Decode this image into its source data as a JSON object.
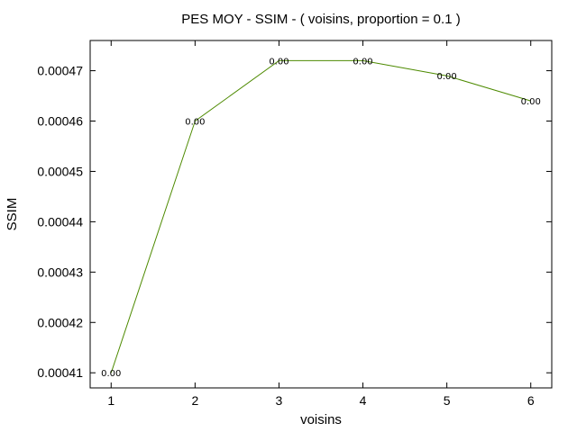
{
  "chart_data": {
    "type": "line",
    "title": "PES MOY - SSIM - ( voisins, proportion = 0.1 )",
    "xlabel": "voisins",
    "ylabel": "SSIM",
    "x": [
      1,
      2,
      3,
      4,
      5,
      6
    ],
    "series": [
      {
        "values": [
          0.00041,
          0.00046,
          0.000472,
          0.000472,
          0.000469,
          0.000464
        ],
        "labels": [
          "0.00",
          "0.00",
          "0.00",
          "0.00",
          "0.00",
          "0.00"
        ]
      }
    ],
    "xticks": [
      "1",
      "2",
      "3",
      "4",
      "5",
      "6"
    ],
    "yticks": [
      "0.00041",
      "0.00042",
      "0.00043",
      "0.00044",
      "0.00045",
      "0.00046",
      "0.00047"
    ],
    "xtick_values": [
      1,
      2,
      3,
      4,
      5,
      6
    ],
    "ytick_values": [
      0.00041,
      0.00042,
      0.00043,
      0.00044,
      0.00045,
      0.00046,
      0.00047
    ],
    "xlim": [
      0.75,
      6.25
    ],
    "ylim": [
      0.000407,
      0.000476
    ],
    "grid": false,
    "legend": "none",
    "colors": {
      "line": "#4d8a00",
      "axis": "#000000",
      "background": "#ffffff"
    }
  }
}
